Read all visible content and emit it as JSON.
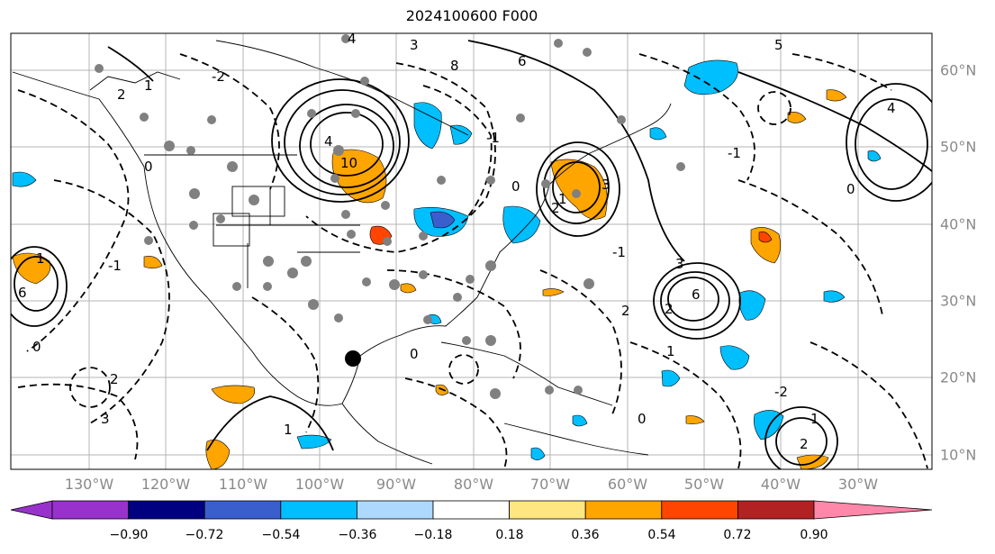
{
  "title": "2024100600 F000",
  "lon_labels": [
    "130°W",
    "120°W",
    "110°W",
    "100°W",
    "90°W",
    "80°W",
    "70°W",
    "60°W",
    "50°W",
    "40°W",
    "30°W"
  ],
  "lat_labels": [
    "60°N",
    "50°N",
    "40°N",
    "30°N",
    "20°N",
    "10°N"
  ],
  "colorbar": {
    "ticks": [
      "−0.90",
      "−0.72",
      "−0.54",
      "−0.36",
      "−0.18",
      "0.18",
      "0.36",
      "0.54",
      "0.72",
      "0.90"
    ],
    "colors": {
      "under": "#9932cc",
      "bins": [
        "#9932cc",
        "#000080",
        "#3a5fcd",
        "#00bfff",
        "#add8ff",
        "#ffffff",
        "#ffe680",
        "#ffa500",
        "#ff4500",
        "#b22222"
      ],
      "over": "#ff88aa"
    }
  },
  "contour_labels": [
    "4",
    "3",
    "5",
    "6",
    "8",
    "2",
    "1",
    "0",
    "-1",
    "-2",
    "10",
    "4",
    "3",
    "2",
    "1",
    "0",
    "-1",
    "2",
    "6",
    "3",
    "2",
    "1",
    "0",
    "-1",
    "-2",
    "2",
    "1",
    "4",
    "0",
    "-1",
    "1",
    "2",
    "3",
    "0",
    "6",
    "1",
    "0"
  ],
  "colors": {
    "positive_fill": "#ffa500",
    "strong_positive_fill": "#ff4500",
    "negative_fill": "#00bfff",
    "strong_negative_fill": "#3a5fcd",
    "station_dots": "#808080",
    "storm_marker": "#000000"
  }
}
